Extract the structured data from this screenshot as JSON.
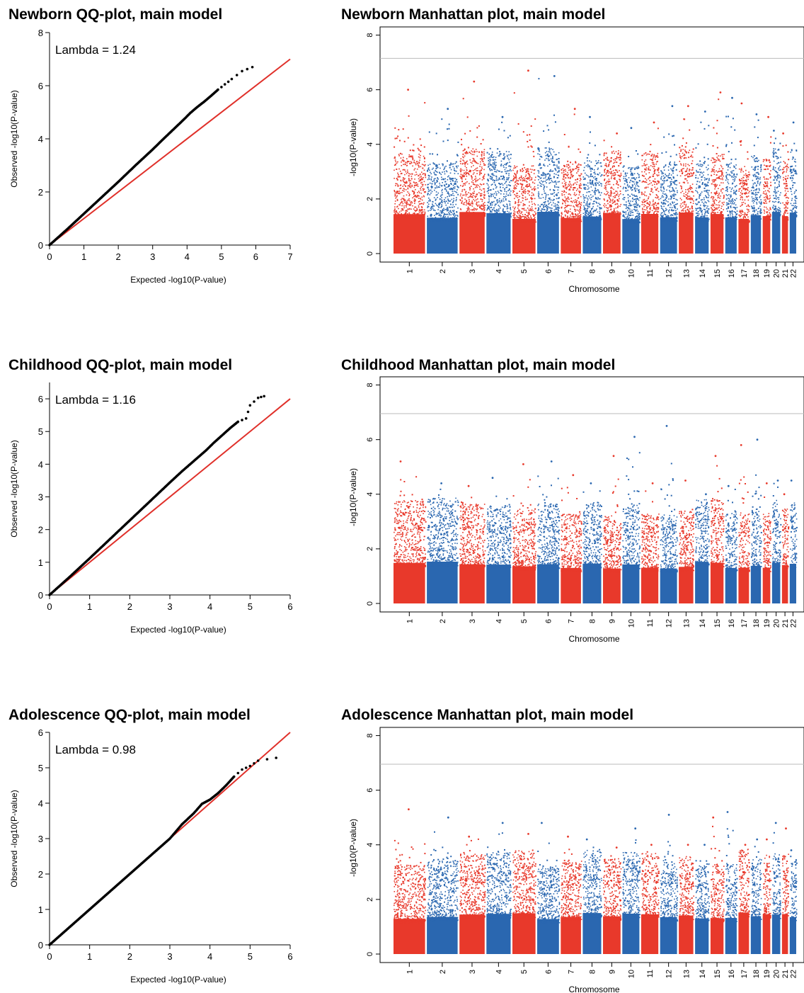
{
  "colors": {
    "odd_chromosome": "#e8392b",
    "even_chromosome": "#2a67b0",
    "expected_line": "#e0302a",
    "qq_points": "#000000",
    "significance_line": "#bbbbbb"
  },
  "chart_data": [
    {
      "type": "scatter",
      "id": "qq-newborn",
      "title": "Newborn QQ-plot, main model",
      "xlabel": "Expected -log10(P-value)",
      "ylabel": "Observed -log10(P-value)",
      "annotation": "Lambda = 1.24",
      "xlim": [
        0,
        7
      ],
      "ylim": [
        0,
        8
      ],
      "xticks": [
        0,
        1,
        2,
        3,
        4,
        5,
        6,
        7
      ],
      "yticks": [
        0,
        2,
        4,
        6,
        8
      ],
      "lambda": 1.24,
      "series": [
        {
          "kind": "points",
          "color": "#000000",
          "x": [
            0,
            0.5,
            1.0,
            1.5,
            2.0,
            2.5,
            3.0,
            3.3,
            3.6,
            3.9,
            4.1,
            4.3,
            4.5,
            4.7,
            4.9,
            5.1,
            5.3,
            5.6,
            5.9
          ],
          "y": [
            0,
            0.58,
            1.18,
            1.78,
            2.38,
            3.0,
            3.6,
            3.98,
            4.35,
            4.72,
            4.98,
            5.2,
            5.4,
            5.62,
            5.85,
            6.05,
            6.25,
            6.55,
            6.7
          ]
        },
        {
          "kind": "line",
          "color": "#e0302a",
          "x": [
            0,
            7
          ],
          "y": [
            0,
            7
          ]
        }
      ]
    },
    {
      "type": "scatter",
      "id": "qq-childhood",
      "title": "Childhood QQ-plot, main model",
      "xlabel": "Expected -log10(P-value)",
      "ylabel": "Observed -log10(P-value)",
      "annotation": "Lambda = 1.16",
      "xlim": [
        0,
        6
      ],
      "ylim": [
        0,
        6.5
      ],
      "xticks": [
        0,
        1,
        2,
        3,
        4,
        5,
        6
      ],
      "yticks": [
        0,
        1,
        2,
        3,
        4,
        5,
        6
      ],
      "lambda": 1.16,
      "series": [
        {
          "kind": "points",
          "color": "#000000",
          "x": [
            0,
            0.5,
            1.0,
            1.5,
            2.0,
            2.5,
            3.0,
            3.3,
            3.6,
            3.9,
            4.1,
            4.3,
            4.5,
            4.7,
            4.9,
            5.0,
            5.2,
            5.35
          ],
          "y": [
            0,
            0.55,
            1.12,
            1.7,
            2.28,
            2.86,
            3.44,
            3.78,
            4.1,
            4.42,
            4.66,
            4.88,
            5.1,
            5.3,
            5.4,
            5.8,
            6.03,
            6.08
          ]
        },
        {
          "kind": "line",
          "color": "#e0302a",
          "x": [
            0,
            6
          ],
          "y": [
            0,
            6
          ]
        }
      ]
    },
    {
      "type": "scatter",
      "id": "qq-adolescence",
      "title": "Adolescence QQ-plot, main model",
      "xlabel": "Expected -log10(P-value)",
      "ylabel": "Observed -log10(P-value)",
      "annotation": "Lambda = 0.98",
      "xlim": [
        0,
        6
      ],
      "ylim": [
        0,
        6
      ],
      "xticks": [
        0,
        1,
        2,
        3,
        4,
        5,
        6
      ],
      "yticks": [
        0,
        1,
        2,
        3,
        4,
        5,
        6
      ],
      "lambda": 0.98,
      "series": [
        {
          "kind": "points",
          "color": "#000000",
          "x": [
            0,
            0.5,
            1.0,
            1.5,
            2.0,
            2.5,
            3.0,
            3.3,
            3.6,
            3.8,
            4.0,
            4.2,
            4.4,
            4.6,
            4.8,
            5.0,
            5.2,
            5.65
          ],
          "y": [
            0,
            0.5,
            1.0,
            1.5,
            2.0,
            2.5,
            3.0,
            3.4,
            3.72,
            3.98,
            4.1,
            4.28,
            4.5,
            4.75,
            4.95,
            5.05,
            5.2,
            5.28
          ]
        },
        {
          "kind": "line",
          "color": "#e0302a",
          "x": [
            0,
            6
          ],
          "y": [
            0,
            6
          ]
        }
      ]
    },
    {
      "type": "scatter",
      "id": "manhattan-newborn",
      "title": "Newborn Manhattan plot, main model",
      "xlabel": "Chromosome",
      "ylabel": "-log10(P-value)",
      "ylim": [
        0,
        8.3
      ],
      "yticks": [
        0,
        2,
        4,
        6,
        8
      ],
      "significance_line": 7.15,
      "chromosomes": [
        "1",
        "2",
        "3",
        "4",
        "5",
        "6",
        "7",
        "8",
        "9",
        "10",
        "11",
        "12",
        "13",
        "14",
        "15",
        "16",
        "17",
        "18",
        "19",
        "20",
        "21",
        "22"
      ],
      "chromosome_peaks": [
        6.0,
        5.3,
        6.3,
        5.0,
        6.7,
        6.5,
        5.3,
        5.0,
        4.4,
        4.6,
        4.8,
        5.4,
        5.4,
        5.2,
        5.9,
        5.7,
        5.5,
        5.1,
        5.0,
        4.5,
        4.4,
        4.8
      ]
    },
    {
      "type": "scatter",
      "id": "manhattan-childhood",
      "title": "Childhood Manhattan plot, main model",
      "xlabel": "Chromosome",
      "ylabel": "-log10(P-value)",
      "ylim": [
        0,
        8.3
      ],
      "yticks": [
        0,
        2,
        4,
        6,
        8
      ],
      "significance_line": 6.95,
      "chromosomes": [
        "1",
        "2",
        "3",
        "4",
        "5",
        "6",
        "7",
        "8",
        "9",
        "10",
        "11",
        "12",
        "13",
        "14",
        "15",
        "16",
        "17",
        "18",
        "19",
        "20",
        "21",
        "22"
      ],
      "chromosome_peaks": [
        5.2,
        4.4,
        4.3,
        4.6,
        5.1,
        5.2,
        4.7,
        4.4,
        5.4,
        6.1,
        4.4,
        6.5,
        4.5,
        4.0,
        5.4,
        4.3,
        5.8,
        6.0,
        4.4,
        4.5,
        4.0,
        4.5
      ]
    },
    {
      "type": "scatter",
      "id": "manhattan-adolescence",
      "title": "Adolescence Manhattan plot, main model",
      "xlabel": "Chromosome",
      "ylabel": "-log10(P-value)",
      "ylim": [
        0,
        8.3
      ],
      "yticks": [
        0,
        2,
        4,
        6,
        8
      ],
      "significance_line": 6.95,
      "chromosomes": [
        "1",
        "2",
        "3",
        "4",
        "5",
        "6",
        "7",
        "8",
        "9",
        "10",
        "11",
        "12",
        "13",
        "14",
        "15",
        "16",
        "17",
        "18",
        "19",
        "20",
        "21",
        "22"
      ],
      "chromosome_peaks": [
        5.3,
        5.0,
        4.3,
        4.8,
        4.4,
        4.8,
        4.3,
        4.2,
        3.9,
        4.6,
        4.0,
        5.1,
        4.0,
        4.0,
        5.0,
        5.2,
        4.0,
        4.2,
        4.2,
        4.8,
        4.6,
        3.8
      ]
    }
  ]
}
